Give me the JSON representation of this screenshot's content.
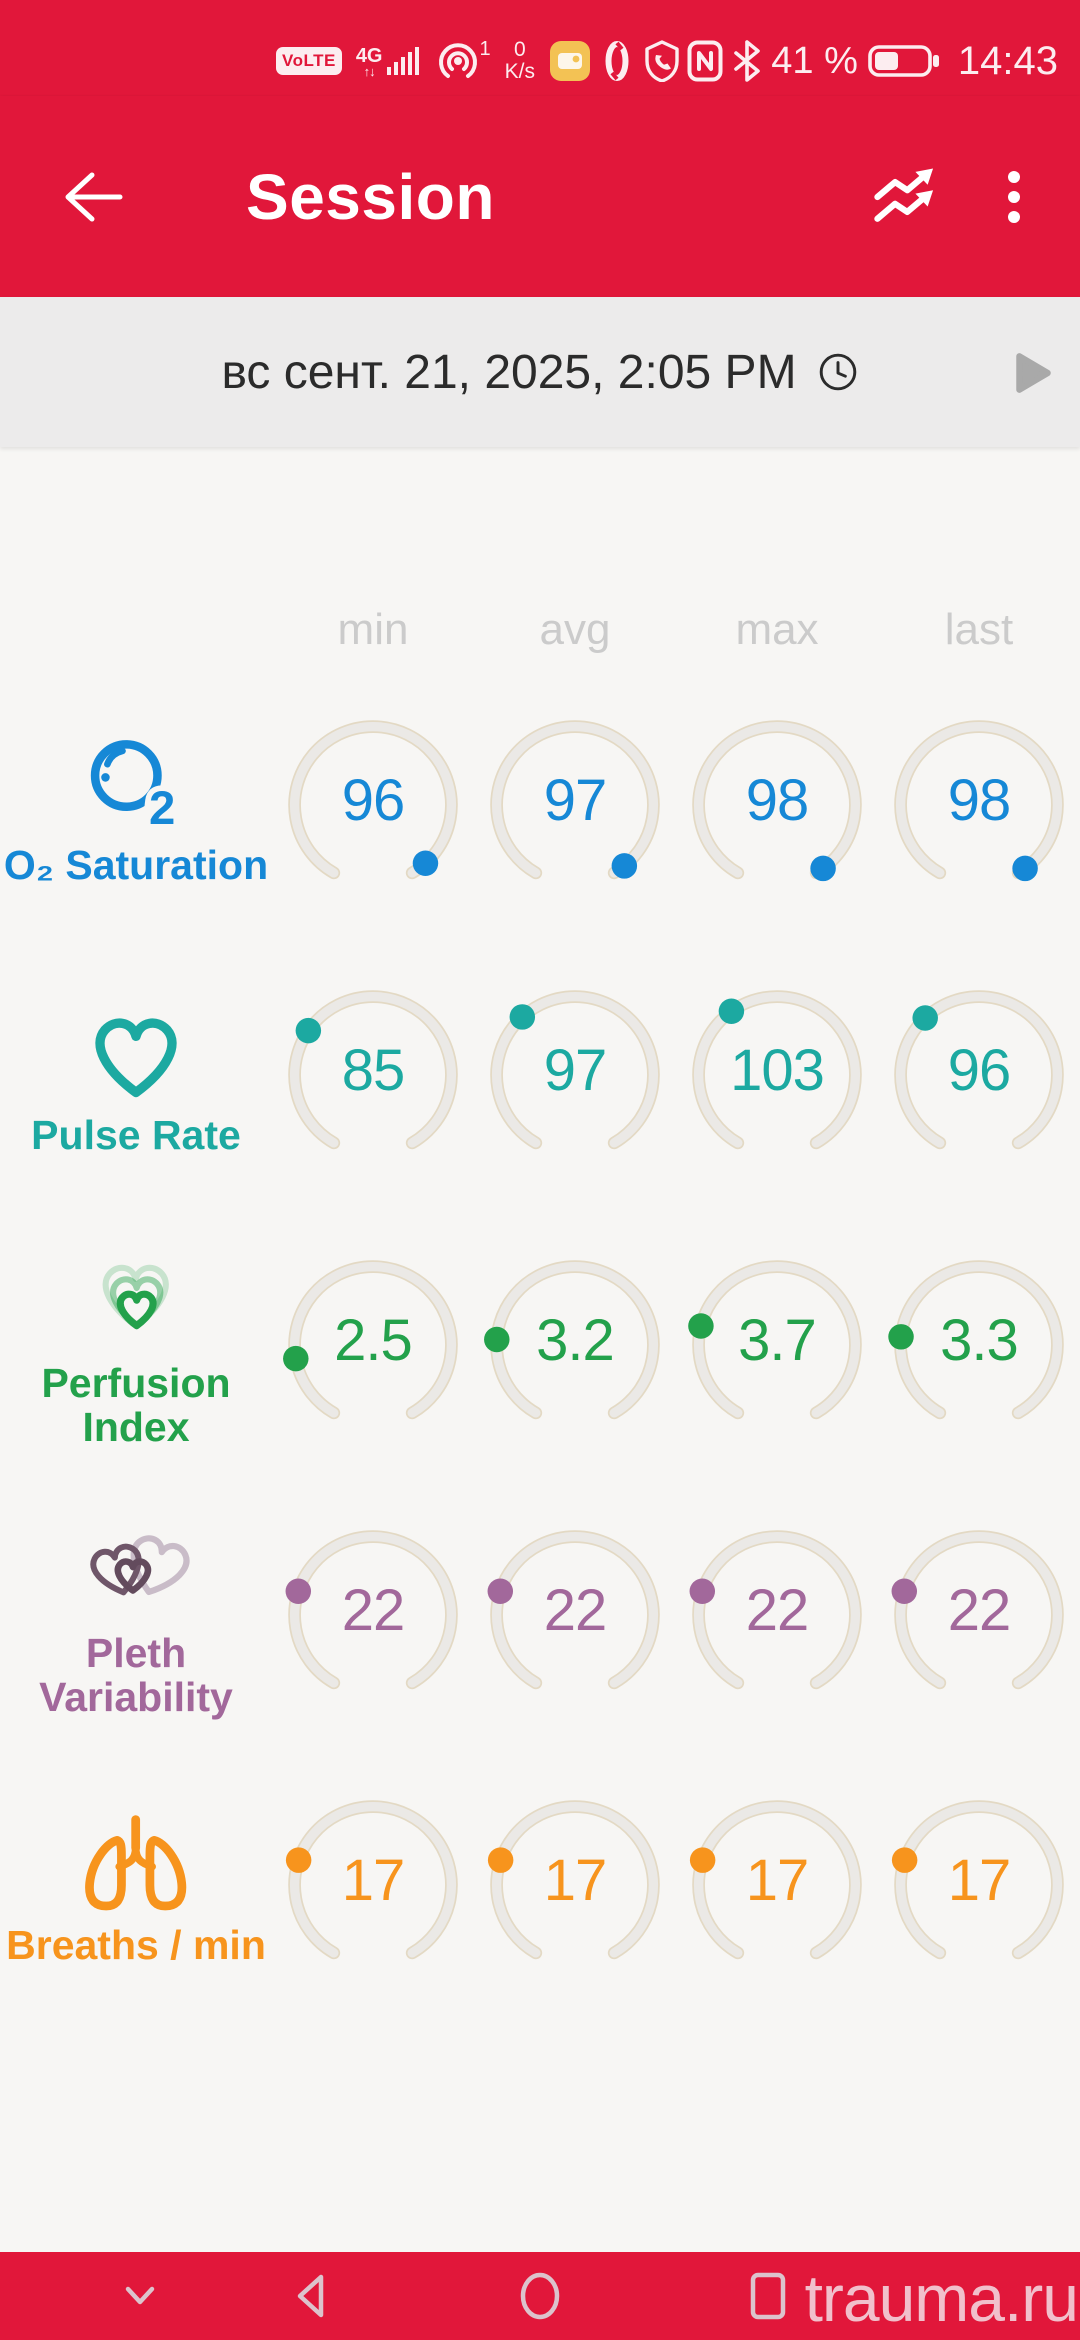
{
  "colors": {
    "primary_red": "#e1173a",
    "o2_blue": "#1688d6",
    "pulse_teal": "#1ca9a1",
    "perfusion_green": "#23a14b",
    "pleth_mauve": "#a2689b",
    "breaths_orange": "#f7941d",
    "gauge_arc": "#e9e5df"
  },
  "status_bar": {
    "volte_label": "VoLTE",
    "network_type": "4G",
    "network_arrows": "↑↓",
    "hotspot_count": "1",
    "data_rate_value": "0",
    "data_rate_unit": "K/s",
    "left_icons": [
      "volte-badge",
      "signal-bars",
      "hotspot",
      "data-rate",
      "notes-app",
      "vpn",
      "call-shield"
    ],
    "right_icons": [
      "nfc",
      "bluetooth",
      "battery"
    ],
    "battery_percent": "41 %",
    "time": "14:43"
  },
  "app_bar": {
    "title": "Session"
  },
  "session_bar": {
    "datetime": "вс сент. 21, 2025, 2:05 PM"
  },
  "metrics_table": {
    "column_headers": [
      "min",
      "avg",
      "max",
      "last"
    ],
    "rows": [
      {
        "id": "o2_saturation",
        "label": "O₂ Saturation",
        "color": "#1688d6",
        "values": [
          "96",
          "97",
          "98",
          "98"
        ]
      },
      {
        "id": "pulse_rate",
        "label": "Pulse Rate",
        "color": "#1ca9a1",
        "values": [
          "85",
          "97",
          "103",
          "96"
        ]
      },
      {
        "id": "perfusion_index",
        "label": "Perfusion Index",
        "color": "#23a14b",
        "values": [
          "2.5",
          "3.2",
          "3.7",
          "3.3"
        ]
      },
      {
        "id": "pleth_variability",
        "label": "Pleth Variability",
        "color": "#a2689b",
        "values": [
          "22",
          "22",
          "22",
          "22"
        ]
      },
      {
        "id": "breaths_per_min",
        "label": "Breaths / min",
        "color": "#f7941d",
        "values": [
          "17",
          "17",
          "17",
          "17"
        ]
      }
    ]
  },
  "nav_bar": {
    "watermark": "trauma.ru"
  }
}
